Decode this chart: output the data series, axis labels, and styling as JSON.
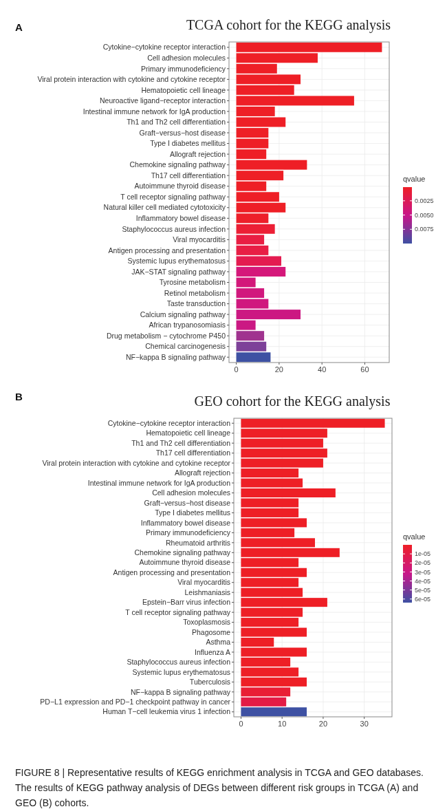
{
  "chart_data": [
    {
      "type": "bar",
      "orientation": "horizontal",
      "title": "TCGA cohort for the KEGG analysis",
      "annotations": [
        "A"
      ],
      "categories": [
        "Cytokine−cytokine receptor interaction",
        "Cell adhesion molecules",
        "Primary immunodeficiency",
        "Viral protein interaction with cytokine and cytokine receptor",
        "Hematopoietic cell lineage",
        "Neuroactive ligand−receptor interaction",
        "Intestinal immune network for IgA production",
        "Th1 and Th2 cell differentiation",
        "Graft−versus−host disease",
        "Type I diabetes mellitus",
        "Allograft rejection",
        "Chemokine signaling pathway",
        "Th17 cell differentiation",
        "Autoimmune thyroid disease",
        "T cell receptor signaling pathway",
        "Natural killer cell mediated cytotoxicity",
        "Inflammatory bowel disease",
        "Staphylococcus aureus infection",
        "Viral myocarditis",
        "Antigen processing and presentation",
        "Systemic lupus erythematosus",
        "JAK−STAT signaling pathway",
        "Tyrosine metabolism",
        "Retinol metabolism",
        "Taste transduction",
        "Calcium signaling pathway",
        "African trypanosomiasis",
        "Drug metabolism − cytochrome P450",
        "Chemical carcinogenesis",
        "NF−kappa B signaling pathway"
      ],
      "values": [
        68,
        38,
        19,
        30,
        27,
        55,
        18,
        23,
        15,
        15,
        14,
        33,
        22,
        14,
        20,
        23,
        15,
        18,
        13,
        15,
        21,
        23,
        9,
        13,
        15,
        30,
        9,
        13,
        14,
        16
      ],
      "colors": [
        "#ee1f26",
        "#ee1f26",
        "#ee1f26",
        "#ee1f26",
        "#ee1f26",
        "#ee1f26",
        "#ee1f26",
        "#ee1f26",
        "#ee1f26",
        "#ee1f26",
        "#ee1f26",
        "#ee1f26",
        "#ee1f26",
        "#ee1f26",
        "#ee1f26",
        "#ee1f26",
        "#ed1f2a",
        "#ec1f35",
        "#e91e43",
        "#e81e45",
        "#e41b50",
        "#d5187a",
        "#d3187a",
        "#d1187d",
        "#d0187e",
        "#cc1882",
        "#cb1883",
        "#a0338f",
        "#7d4199",
        "#3e51a3"
      ],
      "xlim": [
        -3.4,
        71.4
      ],
      "xticks": [
        0,
        20,
        40,
        60
      ],
      "grid": true,
      "clabel": "qvalue",
      "clim": [
        0.0001,
        0.01
      ],
      "cticks": [
        {
          "value": 0.0025,
          "label": "0.0025"
        },
        {
          "value": 0.005,
          "label": "0.0050"
        },
        {
          "value": 0.0075,
          "label": "0.0075"
        }
      ]
    },
    {
      "type": "bar",
      "orientation": "horizontal",
      "title": "GEO cohort for the KEGG analysis",
      "annotations": [
        "B",
        "FIGURE 8 | Representative results of KEGG enrichment analysis in TCGA and GEO databases. The results of KEGG pathway analysis of DEGs between different risk groups in TCGA (A) and GEO (B) cohorts."
      ],
      "categories": [
        "Cytokine−cytokine receptor interaction",
        "Hematopoietic cell lineage",
        "Th1 and Th2 cell differentiation",
        "Th17 cell differentiation",
        "Viral protein interaction with cytokine and cytokine receptor",
        "Allograft rejection",
        "Intestinal immune network for IgA production",
        "Cell adhesion molecules",
        "Graft−versus−host disease",
        "Type I diabetes mellitus",
        "Inflammatory bowel disease",
        "Primary immunodeficiency",
        "Rheumatoid arthritis",
        "Chemokine signaling pathway",
        "Autoimmune thyroid disease",
        "Antigen processing and presentation",
        "Viral myocarditis",
        "Leishmaniasis",
        "Epstein−Barr virus infection",
        "T cell receptor signaling pathway",
        "Toxoplasmosis",
        "Phagosome",
        "Asthma",
        "Influenza A",
        "Staphylococcus aureus infection",
        "Systemic lupus erythematosus",
        "Tuberculosis",
        "NF−kappa B signaling pathway",
        "PD−L1 expression and PD−1 checkpoint pathway in cancer",
        "Human T−cell leukemia virus 1 infection"
      ],
      "values": [
        35,
        21,
        20,
        21,
        20,
        14,
        15,
        23,
        14,
        14,
        16,
        13,
        18,
        24,
        14,
        16,
        14,
        15,
        21,
        15,
        14,
        16,
        8,
        16,
        12,
        14,
        16,
        12,
        11,
        16
      ],
      "colors": [
        "#ee1f26",
        "#ee1f26",
        "#ee1f26",
        "#ee1f26",
        "#ee1f26",
        "#ee1f26",
        "#ee1f26",
        "#ee1f26",
        "#ee1f26",
        "#ee1f26",
        "#ee1f26",
        "#ee1f26",
        "#ee1f26",
        "#ee1f26",
        "#ee1f26",
        "#ee1f26",
        "#ee1f26",
        "#ee1f26",
        "#ee1f26",
        "#ee1f26",
        "#ee1f26",
        "#ee1f26",
        "#ee1f26",
        "#ee1f26",
        "#ee1f26",
        "#ee1f26",
        "#ee1f26",
        "#e91e35",
        "#e31b45",
        "#3e51a3"
      ],
      "xlim": [
        -1.75,
        36.75
      ],
      "xticks": [
        0,
        10,
        20,
        30
      ],
      "grid": true,
      "clabel": "qvalue",
      "clim": [
        0,
        6.4e-05
      ],
      "cticks": [
        {
          "value": 1e-05,
          "label": "1e-05"
        },
        {
          "value": 2e-05,
          "label": "2e-05"
        },
        {
          "value": 3e-05,
          "label": "3e-05"
        },
        {
          "value": 4e-05,
          "label": "4e-05"
        },
        {
          "value": 5e-05,
          "label": "5e-05"
        },
        {
          "value": 6e-05,
          "label": "6e-05"
        }
      ]
    }
  ]
}
